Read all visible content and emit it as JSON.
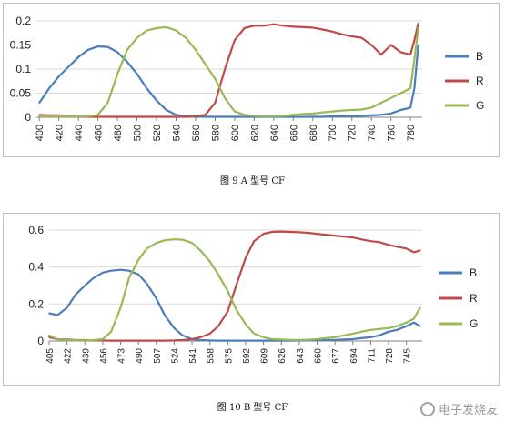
{
  "captions": {
    "fig9": "图 9  A 型号 CF",
    "fig10": "图 10 B 型号 CF"
  },
  "watermark": {
    "text": "电子发烧友",
    "url": "www.elecfans.com"
  },
  "chart_data": [
    {
      "type": "line",
      "x": [
        400,
        410,
        420,
        430,
        440,
        450,
        460,
        470,
        480,
        490,
        500,
        510,
        520,
        530,
        540,
        550,
        560,
        570,
        580,
        590,
        600,
        610,
        620,
        630,
        640,
        650,
        660,
        670,
        680,
        690,
        700,
        710,
        720,
        730,
        740,
        750,
        760,
        770,
        780,
        784,
        788
      ],
      "xticks": [
        400,
        420,
        440,
        460,
        480,
        500,
        520,
        540,
        560,
        580,
        600,
        620,
        640,
        660,
        680,
        700,
        720,
        740,
        760,
        780
      ],
      "yticks": [
        0,
        0.05,
        0.1,
        0.15,
        0.2
      ],
      "ytick_labels": [
        "0",
        "0.05",
        "0.1",
        "0.15",
        "0.2"
      ],
      "xlim": [
        397,
        792
      ],
      "ylim": [
        0,
        0.2
      ],
      "grid": "horizontal",
      "legend_position": "right",
      "series": [
        {
          "name": "B",
          "color": "#4a7ebb",
          "values": [
            0.03,
            0.06,
            0.085,
            0.105,
            0.125,
            0.14,
            0.147,
            0.146,
            0.135,
            0.115,
            0.09,
            0.06,
            0.035,
            0.015,
            0.005,
            0.002,
            0.001,
            0.001,
            0.001,
            0.001,
            0.001,
            0.001,
            0.001,
            0.001,
            0.001,
            0.001,
            0.001,
            0.001,
            0.001,
            0.001,
            0.002,
            0.002,
            0.003,
            0.003,
            0.004,
            0.005,
            0.008,
            0.015,
            0.02,
            0.06,
            0.15
          ]
        },
        {
          "name": "R",
          "color": "#be4b48",
          "values": [
            0.005,
            0.004,
            0.004,
            0.003,
            0.002,
            0.001,
            0.001,
            0.001,
            0.001,
            0.001,
            0.001,
            0.001,
            0.001,
            0.001,
            0.001,
            0.001,
            0.002,
            0.005,
            0.03,
            0.1,
            0.16,
            0.185,
            0.19,
            0.19,
            0.193,
            0.19,
            0.188,
            0.187,
            0.186,
            0.182,
            0.178,
            0.172,
            0.168,
            0.165,
            0.15,
            0.13,
            0.15,
            0.135,
            0.13,
            0.16,
            0.195
          ]
        },
        {
          "name": "G",
          "color": "#98b954",
          "values": [
            0.002,
            0.002,
            0.002,
            0.002,
            0.002,
            0.002,
            0.005,
            0.03,
            0.09,
            0.14,
            0.165,
            0.18,
            0.185,
            0.187,
            0.18,
            0.165,
            0.14,
            0.11,
            0.08,
            0.04,
            0.012,
            0.005,
            0.003,
            0.002,
            0.002,
            0.003,
            0.005,
            0.007,
            0.008,
            0.01,
            0.012,
            0.014,
            0.015,
            0.016,
            0.02,
            0.03,
            0.04,
            0.05,
            0.06,
            0.12,
            0.185
          ]
        }
      ]
    },
    {
      "type": "line",
      "x": [
        405,
        413,
        422,
        430,
        439,
        447,
        456,
        464,
        473,
        481,
        490,
        498,
        507,
        515,
        524,
        532,
        541,
        549,
        558,
        566,
        575,
        583,
        592,
        600,
        609,
        617,
        626,
        634,
        643,
        651,
        660,
        668,
        677,
        685,
        694,
        702,
        711,
        719,
        728,
        736,
        745,
        752,
        758
      ],
      "xticks": [
        405,
        422,
        439,
        456,
        473,
        490,
        507,
        524,
        541,
        558,
        575,
        592,
        609,
        626,
        643,
        660,
        677,
        694,
        711,
        728,
        745
      ],
      "yticks": [
        0,
        0.2,
        0.4,
        0.6
      ],
      "ytick_labels": [
        "0",
        "0.2",
        "0.4",
        "0.6"
      ],
      "xlim": [
        405,
        760
      ],
      "ylim": [
        0,
        0.6
      ],
      "grid": "horizontal",
      "legend_position": "right",
      "series": [
        {
          "name": "B",
          "color": "#4a7ebb",
          "values": [
            0.15,
            0.14,
            0.18,
            0.25,
            0.3,
            0.34,
            0.37,
            0.38,
            0.385,
            0.38,
            0.36,
            0.31,
            0.23,
            0.14,
            0.07,
            0.03,
            0.01,
            0.005,
            0.003,
            0.002,
            0.002,
            0.002,
            0.002,
            0.002,
            0.002,
            0.002,
            0.002,
            0.002,
            0.003,
            0.003,
            0.004,
            0.005,
            0.006,
            0.008,
            0.01,
            0.015,
            0.02,
            0.03,
            0.05,
            0.06,
            0.08,
            0.1,
            0.08
          ]
        },
        {
          "name": "R",
          "color": "#be4b48",
          "values": [
            0.02,
            0.01,
            0.008,
            0.006,
            0.005,
            0.004,
            0.003,
            0.002,
            0.002,
            0.002,
            0.002,
            0.002,
            0.002,
            0.002,
            0.003,
            0.005,
            0.01,
            0.02,
            0.04,
            0.08,
            0.16,
            0.3,
            0.45,
            0.54,
            0.58,
            0.59,
            0.592,
            0.59,
            0.588,
            0.585,
            0.58,
            0.575,
            0.57,
            0.565,
            0.56,
            0.55,
            0.54,
            0.535,
            0.52,
            0.51,
            0.5,
            0.48,
            0.49
          ]
        },
        {
          "name": "G",
          "color": "#98b954",
          "values": [
            0.03,
            0.01,
            0.005,
            0.004,
            0.004,
            0.005,
            0.01,
            0.05,
            0.18,
            0.34,
            0.44,
            0.5,
            0.53,
            0.545,
            0.55,
            0.548,
            0.53,
            0.49,
            0.43,
            0.36,
            0.27,
            0.17,
            0.09,
            0.04,
            0.02,
            0.01,
            0.008,
            0.006,
            0.006,
            0.007,
            0.01,
            0.015,
            0.02,
            0.03,
            0.04,
            0.05,
            0.06,
            0.065,
            0.07,
            0.08,
            0.1,
            0.12,
            0.18
          ]
        }
      ]
    }
  ]
}
